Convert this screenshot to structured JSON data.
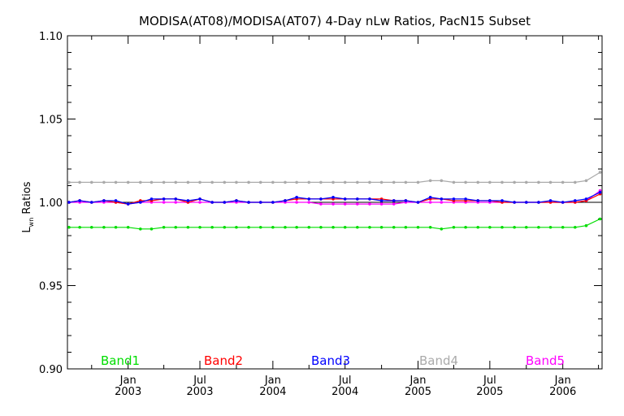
{
  "chart_data": {
    "type": "line",
    "title": "MODISA(AT08)/MODISA(AT07) 4-Day nLw Ratios, PacN15 Subset",
    "ylabel_main": "L",
    "ylabel_sub": "wn",
    "ylabel_rest": " Ratios",
    "ylim": [
      0.9,
      1.1
    ],
    "xlim": [
      "2002-08-01",
      "2006-04-10"
    ],
    "y_ticks": [
      "0.90",
      "0.95",
      "1.00",
      "1.05",
      "1.10"
    ],
    "y_tick_values": [
      0.9,
      0.95,
      1.0,
      1.05,
      1.1
    ],
    "x_ticks": [
      {
        "month": "Jan",
        "year": "2003",
        "date": "2003-01-01"
      },
      {
        "month": "Jul",
        "year": "2003",
        "date": "2003-07-01"
      },
      {
        "month": "Jan",
        "year": "2004",
        "date": "2004-01-01"
      },
      {
        "month": "Jul",
        "year": "2004",
        "date": "2004-07-01"
      },
      {
        "month": "Jan",
        "year": "2005",
        "date": "2005-01-01"
      },
      {
        "month": "Jul",
        "year": "2005",
        "date": "2005-07-01"
      },
      {
        "month": "Jan",
        "year": "2006",
        "date": "2006-01-01"
      }
    ],
    "reference_line": 1.0,
    "x": [
      "2002-08-05",
      "2002-09-01",
      "2002-10-01",
      "2002-11-01",
      "2002-12-01",
      "2003-01-01",
      "2003-02-01",
      "2003-03-01",
      "2003-04-01",
      "2003-05-01",
      "2003-06-01",
      "2003-07-01",
      "2003-08-01",
      "2003-09-01",
      "2003-10-01",
      "2003-11-01",
      "2003-12-01",
      "2004-01-01",
      "2004-02-01",
      "2004-03-01",
      "2004-04-01",
      "2004-05-01",
      "2004-06-01",
      "2004-07-01",
      "2004-08-01",
      "2004-09-01",
      "2004-10-01",
      "2004-11-01",
      "2004-12-01",
      "2005-01-01",
      "2005-02-01",
      "2005-03-01",
      "2005-04-01",
      "2005-05-01",
      "2005-06-01",
      "2005-07-01",
      "2005-08-01",
      "2005-09-01",
      "2005-10-01",
      "2005-11-01",
      "2005-12-01",
      "2006-01-01",
      "2006-02-01",
      "2006-03-01",
      "2006-04-05"
    ],
    "series": [
      {
        "name": "Band1",
        "color": "#00dd00",
        "values": [
          0.985,
          0.985,
          0.985,
          0.985,
          0.985,
          0.985,
          0.984,
          0.984,
          0.985,
          0.985,
          0.985,
          0.985,
          0.985,
          0.985,
          0.985,
          0.985,
          0.985,
          0.985,
          0.985,
          0.985,
          0.985,
          0.985,
          0.985,
          0.985,
          0.985,
          0.985,
          0.985,
          0.985,
          0.985,
          0.985,
          0.985,
          0.984,
          0.985,
          0.985,
          0.985,
          0.985,
          0.985,
          0.985,
          0.985,
          0.985,
          0.985,
          0.985,
          0.985,
          0.986,
          0.99
        ]
      },
      {
        "name": "Band2",
        "color": "#ff0000",
        "values": [
          1.0,
          1.001,
          1.0,
          1.001,
          1.0,
          0.999,
          1.001,
          1.001,
          1.002,
          1.002,
          1.0,
          1.002,
          1.0,
          1.0,
          1.001,
          1.0,
          1.0,
          1.0,
          1.001,
          1.002,
          1.002,
          1.002,
          1.002,
          1.002,
          1.002,
          1.002,
          1.002,
          1.001,
          1.001,
          1.0,
          1.002,
          1.002,
          1.001,
          1.001,
          1.001,
          1.001,
          1.0,
          1.0,
          1.0,
          1.0,
          1.0,
          1.0,
          1.0,
          1.001,
          1.005
        ]
      },
      {
        "name": "Band3",
        "color": "#0000ff",
        "values": [
          1.0,
          1.001,
          1.0,
          1.001,
          1.001,
          0.999,
          1.0,
          1.002,
          1.002,
          1.002,
          1.001,
          1.002,
          1.0,
          1.0,
          1.001,
          1.0,
          1.0,
          1.0,
          1.001,
          1.003,
          1.002,
          1.002,
          1.003,
          1.002,
          1.002,
          1.002,
          1.001,
          1.001,
          1.001,
          1.0,
          1.003,
          1.002,
          1.002,
          1.002,
          1.001,
          1.001,
          1.001,
          1.0,
          1.0,
          1.0,
          1.001,
          1.0,
          1.001,
          1.002,
          1.006
        ]
      },
      {
        "name": "Band4",
        "color": "#aaaaaa",
        "values": [
          1.012,
          1.012,
          1.012,
          1.012,
          1.012,
          1.012,
          1.012,
          1.012,
          1.012,
          1.012,
          1.012,
          1.012,
          1.012,
          1.012,
          1.012,
          1.012,
          1.012,
          1.012,
          1.012,
          1.012,
          1.012,
          1.012,
          1.012,
          1.012,
          1.012,
          1.012,
          1.012,
          1.012,
          1.012,
          1.012,
          1.013,
          1.013,
          1.012,
          1.012,
          1.012,
          1.012,
          1.012,
          1.012,
          1.012,
          1.012,
          1.012,
          1.012,
          1.012,
          1.013,
          1.018
        ]
      },
      {
        "name": "Band5",
        "color": "#ff00ff",
        "values": [
          1.0,
          1.0,
          1.0,
          1.0,
          1.0,
          0.999,
          1.0,
          1.0,
          1.0,
          1.0,
          1.0,
          1.0,
          1.0,
          1.0,
          1.0,
          1.0,
          1.0,
          1.0,
          1.0,
          1.0,
          1.0,
          0.999,
          0.999,
          0.999,
          0.999,
          0.999,
          0.999,
          0.999,
          1.0,
          1.0,
          1.0,
          1.0,
          1.0,
          1.0,
          1.0,
          1.0,
          1.0,
          1.0,
          1.0,
          1.0,
          1.0,
          1.0,
          1.0,
          1.001,
          1.007
        ]
      }
    ],
    "legend_placement": "bottom",
    "grid": false
  }
}
